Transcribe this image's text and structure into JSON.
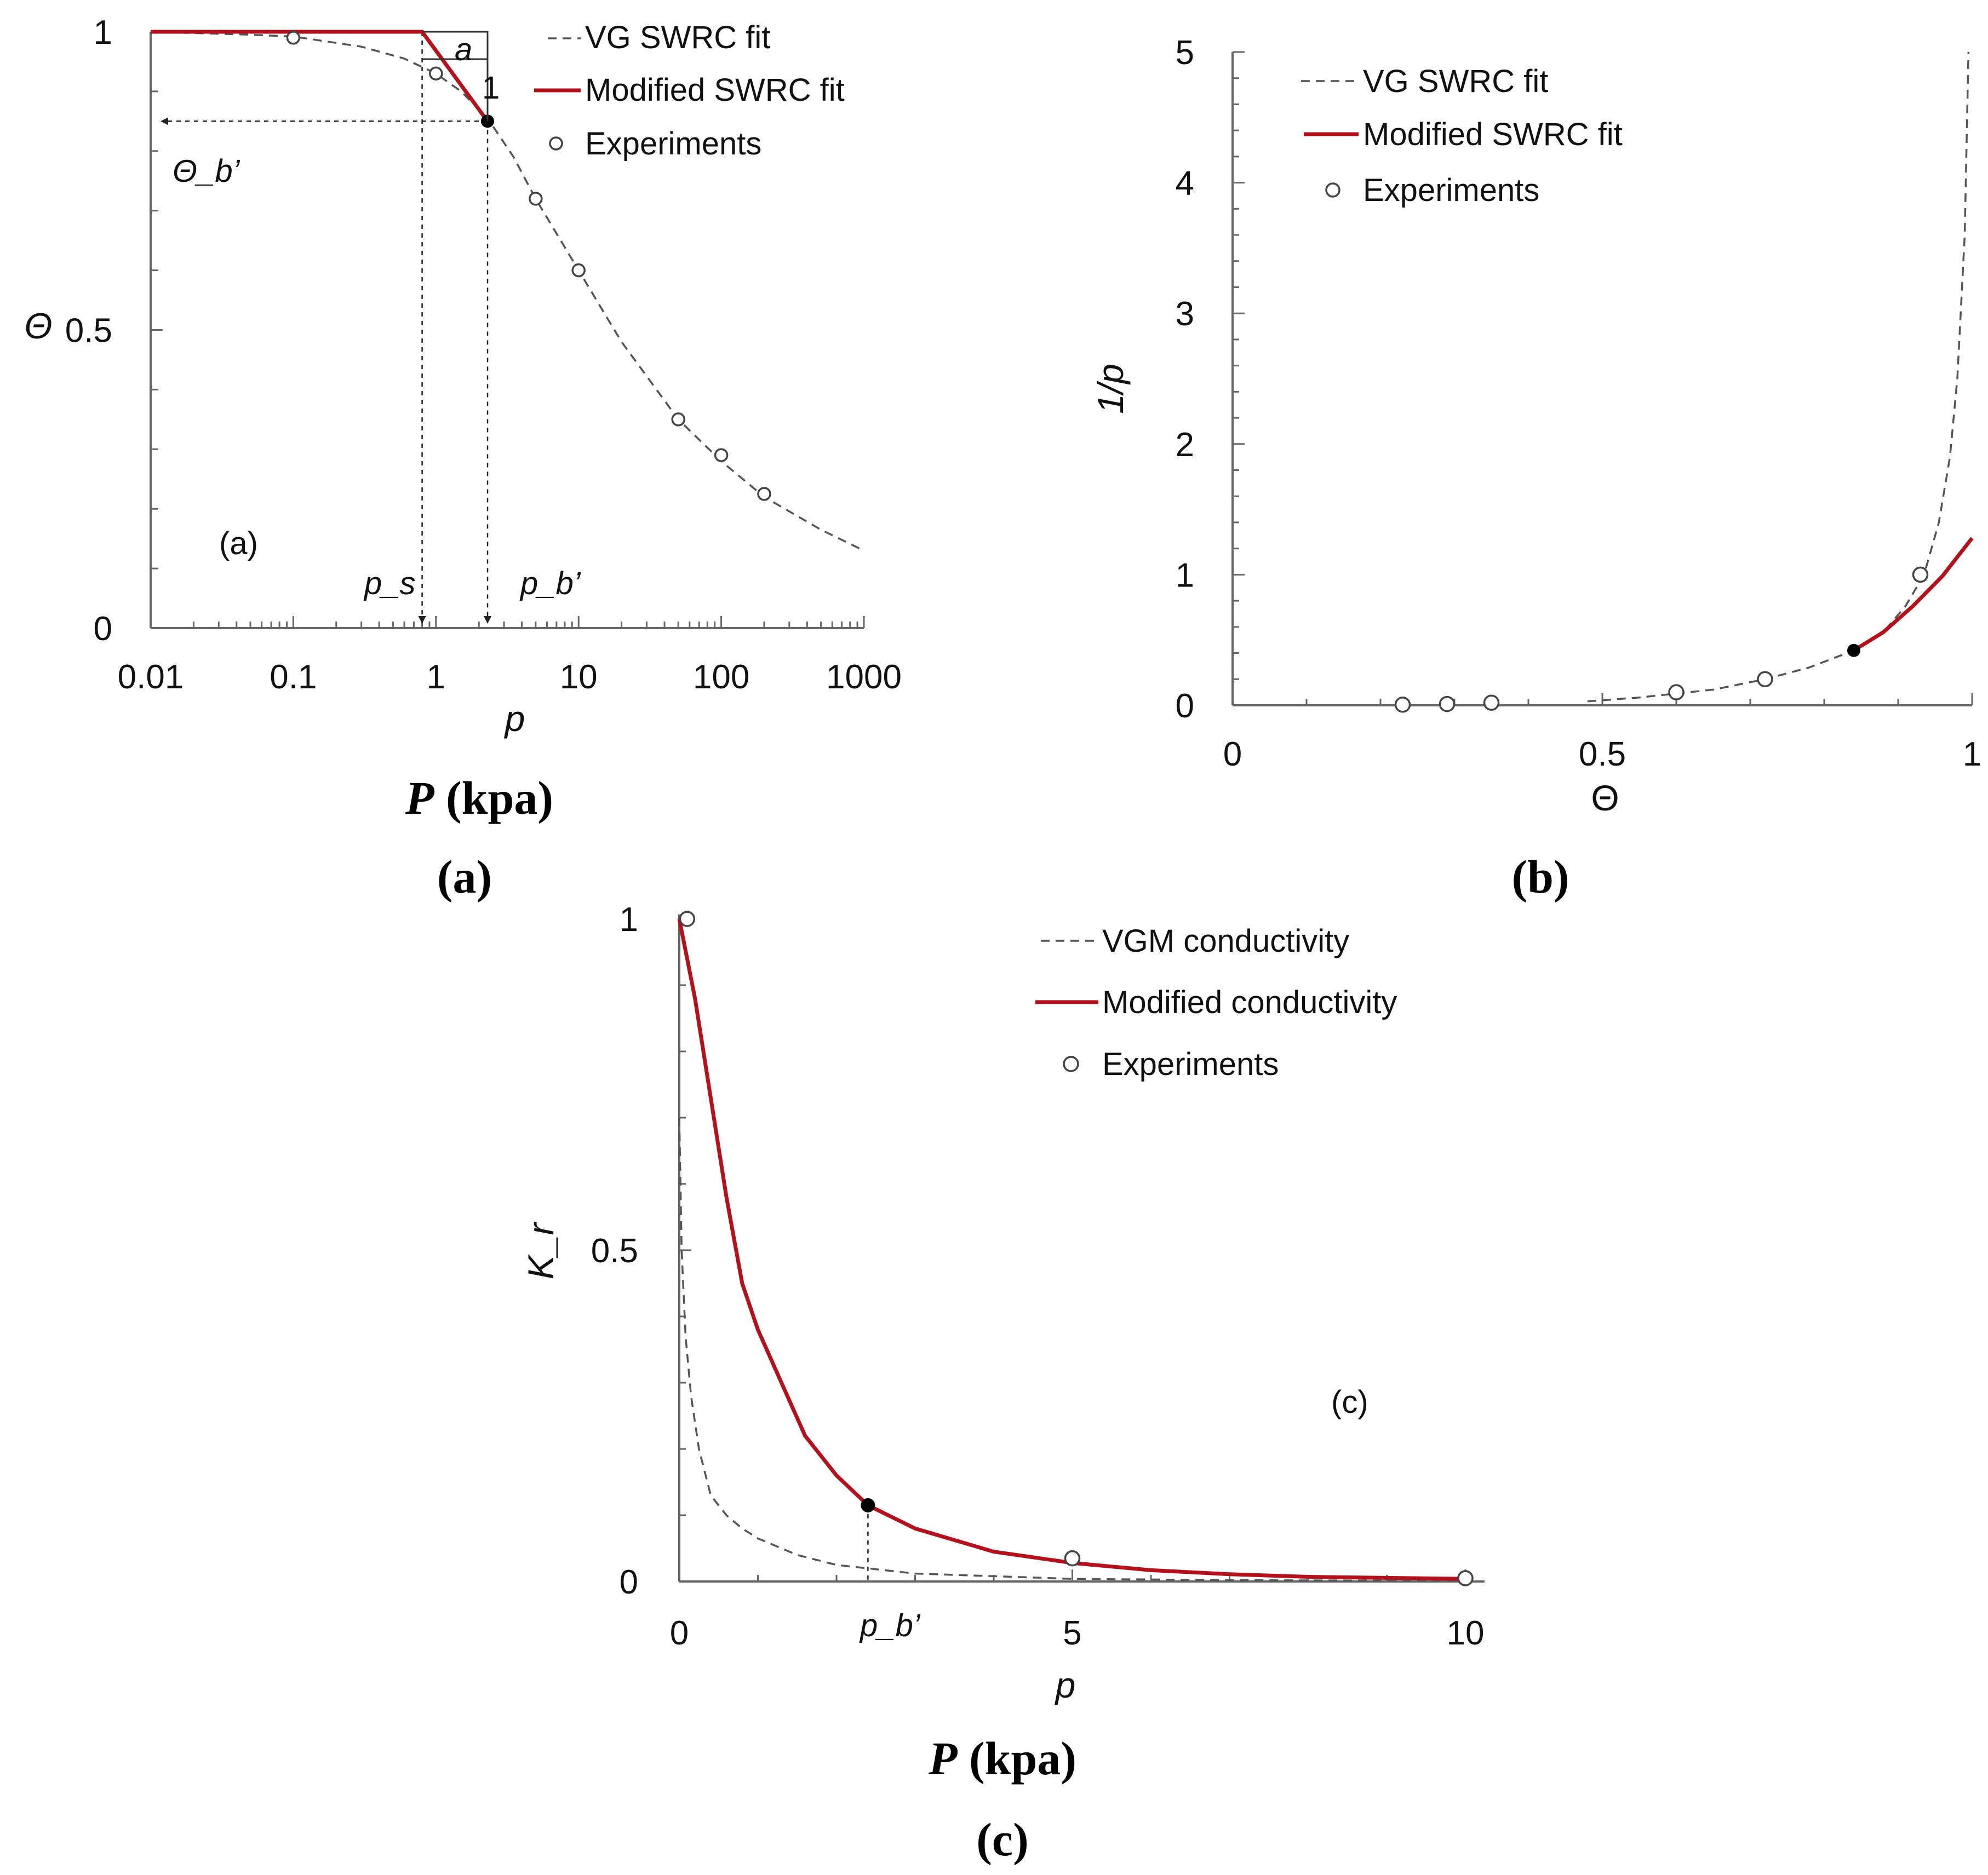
{
  "chart_data": [
    {
      "type": "line",
      "panel": "(a)",
      "xscale": "log",
      "xlim": [
        0.01,
        1000
      ],
      "ylim": [
        0,
        1
      ],
      "xlabel": "p",
      "ylabel": "Θ",
      "xticks": [
        "0.01",
        "0.1",
        "1",
        "10",
        "100",
        "1000"
      ],
      "yticks": [
        "0",
        "0.5",
        "1"
      ],
      "legend": [
        "VG SWRC fit",
        "Modified SWRC fit",
        "Experiments"
      ],
      "legend_position": "top-right",
      "series": [
        {
          "name": "VG SWRC fit",
          "style": "dashed",
          "x": [
            0.01,
            0.05,
            0.1,
            0.3,
            0.6,
            1,
            1.5,
            2.3,
            3.5,
            5,
            10,
            20,
            50,
            100,
            200,
            500,
            1000
          ],
          "y": [
            1.0,
            0.995,
            0.992,
            0.975,
            0.955,
            0.93,
            0.9,
            0.855,
            0.79,
            0.72,
            0.6,
            0.48,
            0.35,
            0.28,
            0.22,
            0.165,
            0.13
          ]
        },
        {
          "name": "Modified SWRC fit",
          "style": "solid",
          "x": [
            0.01,
            0.8,
            2.3
          ],
          "y": [
            1.0,
            1.0,
            0.85
          ]
        },
        {
          "name": "Experiments",
          "style": "marker",
          "x": [
            0.1,
            1,
            5,
            10,
            50,
            100,
            200
          ],
          "y": [
            0.99,
            0.93,
            0.72,
            0.6,
            0.35,
            0.29,
            0.225
          ]
        }
      ],
      "breakpoint": {
        "x": 2.3,
        "y": 0.85
      },
      "annotations": {
        "slope_run": "a",
        "slope_rise": "1",
        "theta_b": "Θ_b’",
        "ps": "p_s",
        "pb": "p_b’",
        "panel_tag": "(a)"
      },
      "caption_axis": "P (kpa)",
      "caption": "(a)"
    },
    {
      "type": "line",
      "panel": "(b)",
      "xlim": [
        0,
        1
      ],
      "ylim": [
        0,
        5
      ],
      "xlabel": "Θ",
      "ylabel": "1/p",
      "xticks": [
        "0",
        "0.5",
        "1"
      ],
      "yticks": [
        "0",
        "1",
        "2",
        "3",
        "4",
        "5"
      ],
      "legend": [
        "VG SWRC fit",
        "Modified SWRC fit",
        "Experiments"
      ],
      "legend_position": "top-left",
      "series": [
        {
          "name": "VG SWRC fit",
          "style": "dashed",
          "x": [
            0.48,
            0.55,
            0.6,
            0.65,
            0.72,
            0.78,
            0.84,
            0.88,
            0.91,
            0.935,
            0.955,
            0.97,
            0.98,
            0.99,
            0.995
          ],
          "y": [
            0.03,
            0.06,
            0.09,
            0.12,
            0.2,
            0.29,
            0.42,
            0.56,
            0.76,
            1.0,
            1.4,
            1.9,
            2.5,
            3.6,
            5.0
          ]
        },
        {
          "name": "Modified SWRC fit",
          "style": "solid",
          "x": [
            0.84,
            0.88,
            0.92,
            0.96,
            1.0
          ],
          "y": [
            0.42,
            0.56,
            0.76,
            0.99,
            1.28
          ]
        },
        {
          "name": "Experiments",
          "style": "marker",
          "x": [
            0.23,
            0.29,
            0.35,
            0.6,
            0.72,
            0.93
          ],
          "y": [
            0.005,
            0.01,
            0.02,
            0.1,
            0.2,
            1.0
          ]
        }
      ],
      "breakpoint": {
        "x": 0.84,
        "y": 0.42
      },
      "caption": "(b)"
    },
    {
      "type": "line",
      "panel": "(c)",
      "xlim": [
        0,
        10
      ],
      "ylim": [
        0,
        1
      ],
      "xlabel": "p",
      "ylabel": "K_r",
      "xticks": [
        "0",
        "5",
        "10"
      ],
      "yticks": [
        "0",
        "0.5",
        "1"
      ],
      "legend": [
        "VGM conductivity",
        "Modified conductivity",
        "Experiments"
      ],
      "legend_position": "top-right",
      "series": [
        {
          "name": "VGM conductivity",
          "style": "dashed",
          "x": [
            0,
            0.03,
            0.08,
            0.15,
            0.25,
            0.4,
            0.6,
            0.8,
            1.0,
            1.5,
            2.0,
            3.0,
            5.0,
            7.0,
            10.0
          ],
          "y": [
            0.7,
            0.5,
            0.37,
            0.28,
            0.2,
            0.13,
            0.1,
            0.08,
            0.065,
            0.04,
            0.025,
            0.012,
            0.004,
            0.002,
            0.001
          ]
        },
        {
          "name": "Modified conductivity",
          "style": "solid",
          "x": [
            0,
            0.2,
            0.4,
            0.6,
            0.8,
            1.0,
            1.3,
            1.6,
            2.0,
            2.4,
            3.0,
            4.0,
            5.0,
            6.0,
            7.0,
            8.0,
            10.0
          ],
          "y": [
            1.0,
            0.88,
            0.73,
            0.58,
            0.45,
            0.38,
            0.3,
            0.22,
            0.16,
            0.115,
            0.08,
            0.045,
            0.028,
            0.017,
            0.011,
            0.007,
            0.004
          ]
        },
        {
          "name": "Experiments",
          "style": "marker",
          "x": [
            0.1,
            5,
            10
          ],
          "y": [
            1.0,
            0.035,
            0.005
          ]
        }
      ],
      "breakpoint": {
        "x": 2.4,
        "y": 0.115
      },
      "annotations": {
        "pb": "p_b’",
        "panel_tag": "(c)"
      },
      "caption_axis": "P (kpa)",
      "caption": "(c)"
    }
  ]
}
